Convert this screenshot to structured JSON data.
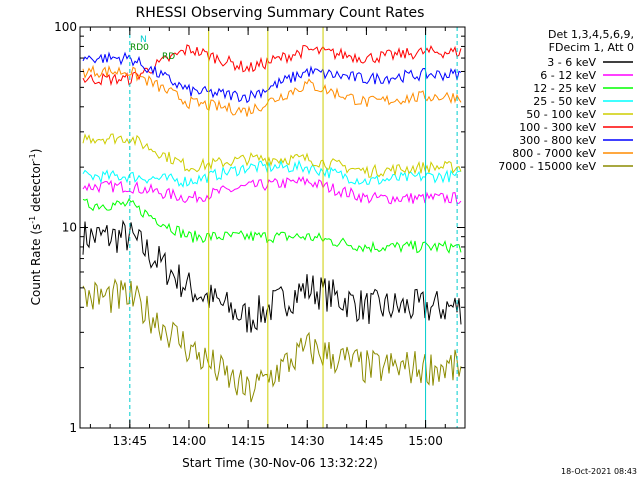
{
  "chart_data": {
    "type": "line",
    "title": "RHESSI Observing Summary Count Rates",
    "xlabel": "Start Time (30-Nov-06 13:32:22)",
    "ylabel": "Count Rate (s",
    "ylabel_sup": "-1",
    "ylabel_tail": " detector",
    "ylabel_close": ")",
    "y_scale": "log",
    "ylim": [
      1,
      100
    ],
    "xlim": [
      "13:32:22",
      "15:10:00"
    ],
    "y_ticks": [
      "1",
      "10",
      "100"
    ],
    "x_ticks": [
      "13:45",
      "14:00",
      "14:15",
      "14:30",
      "14:45",
      "15:00"
    ],
    "legend_placement": "right",
    "legend_header": [
      "Det 1,3,4,5,6,9,",
      "FDecim 1, Att 0"
    ],
    "attenuator_labels": [
      {
        "text": "N",
        "color": "#00cdcd"
      },
      {
        "text": "RD0",
        "color": "#008b00"
      },
      {
        "text": "RD",
        "color": "#008b00"
      }
    ],
    "timestamp": "18-Oct-2021 08:43",
    "series": [
      {
        "name": "3 - 6 keV",
        "color": "#000000",
        "values_at_ticks": [
          9,
          5,
          3.5,
          5,
          4,
          4
        ]
      },
      {
        "name": "6 - 12 keV",
        "color": "#ff00ff",
        "values_at_ticks": [
          16,
          14,
          16,
          17,
          14,
          14
        ]
      },
      {
        "name": "12 - 25 keV",
        "color": "#00ff00",
        "values_at_ticks": [
          13,
          9,
          9,
          9,
          8,
          8
        ]
      },
      {
        "name": "25 - 50 keV",
        "color": "#00ffff",
        "values_at_ticks": [
          18,
          17,
          20,
          20,
          17,
          18
        ]
      },
      {
        "name": "50 - 100 keV",
        "color": "#cdcd00",
        "values_at_ticks": [
          28,
          20,
          22,
          22,
          19,
          20
        ]
      },
      {
        "name": "100 - 300 keV",
        "color": "#ff0000",
        "values_at_ticks": [
          55,
          78,
          62,
          77,
          70,
          75
        ]
      },
      {
        "name": "300 - 800 keV",
        "color": "#0000ff",
        "values_at_ticks": [
          70,
          48,
          45,
          60,
          55,
          58
        ]
      },
      {
        "name": "800 - 7000 keV",
        "color": "#ff8c00",
        "values_at_ticks": [
          60,
          42,
          38,
          52,
          42,
          45
        ]
      },
      {
        "name": "7000 - 15000 keV",
        "color": "#8b8b00",
        "values_at_ticks": [
          4.5,
          2.5,
          1.5,
          2.5,
          2,
          2
        ]
      }
    ]
  }
}
